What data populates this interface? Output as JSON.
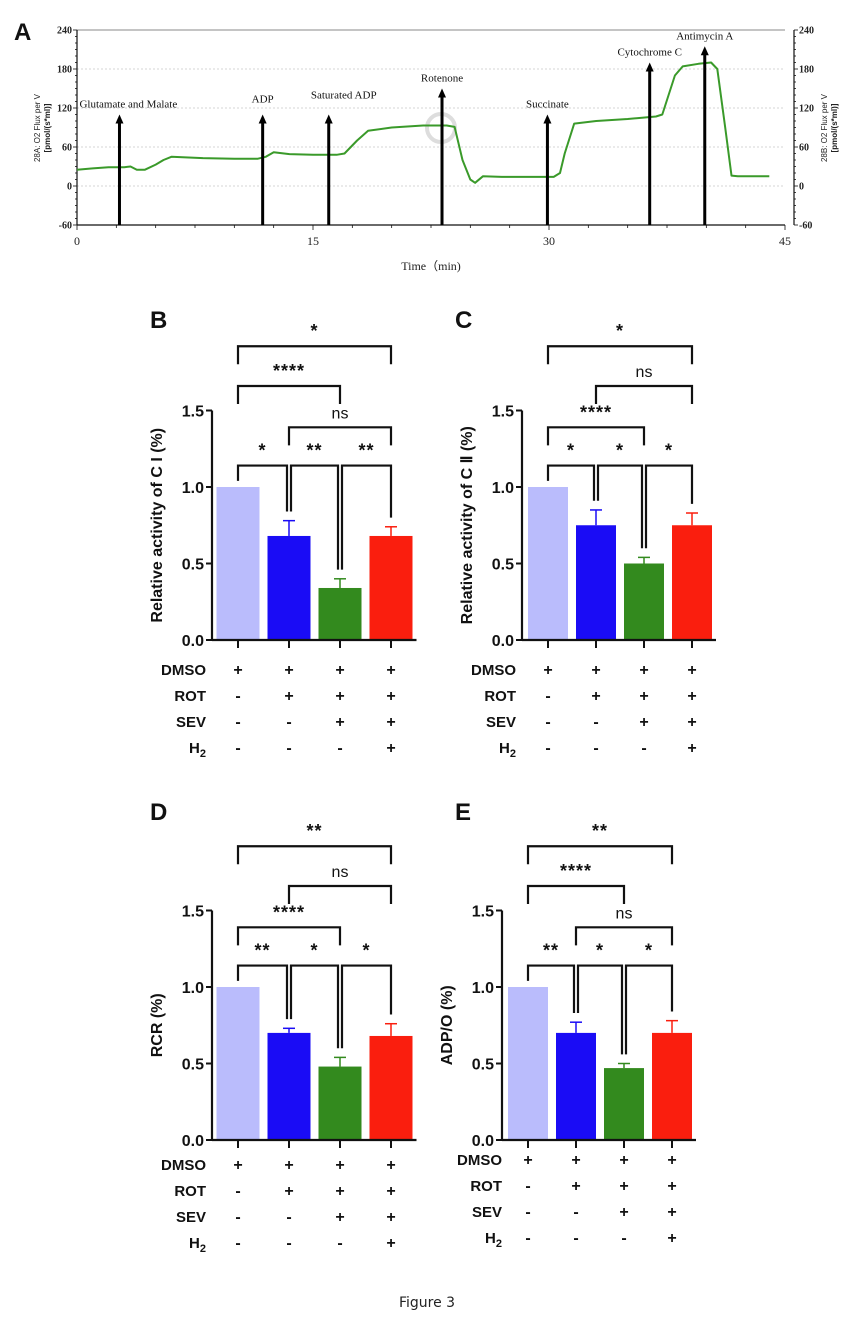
{
  "figure_caption": "Figure 3",
  "colors": {
    "trace": "#3a9a2a",
    "bar_dmso": "#babcfc",
    "bar_rot": "#1a0cf5",
    "bar_sev": "#338a1e",
    "bar_h2": "#fa1e0e"
  },
  "chart_data": [
    {
      "panel": "A",
      "type": "line",
      "title": "",
      "xlabel": "Time（min)",
      "ylabel_left": "28A: O2 Flux per V [pmol/(s*ml)]",
      "ylabel_right": "28B: O2 Flux per V [pmol/(s*ml)]",
      "xlim": [
        0,
        45
      ],
      "ylim": [
        -60,
        240
      ],
      "xticks": [
        "0",
        "15",
        "30",
        "45"
      ],
      "yticks": [
        "-60",
        "0",
        "60",
        "120",
        "180",
        "240"
      ],
      "grid": true,
      "series": [
        {
          "name": "O2 flux",
          "x": [
            0,
            1,
            2,
            3,
            3.4,
            3.8,
            4.3,
            5,
            5.5,
            6,
            8,
            10,
            11.5,
            12,
            12.5,
            13.5,
            15,
            16.5,
            17,
            17.8,
            18.5,
            20,
            22,
            23.5,
            24,
            24.5,
            25,
            25.3,
            25.8,
            27,
            29,
            30.3,
            30.7,
            31,
            31.6,
            33,
            35,
            36.8,
            37.2,
            38,
            38.5,
            39.5,
            40.3,
            40.7,
            41.2,
            41.6,
            42,
            44
          ],
          "y": [
            25,
            27,
            29,
            29,
            30,
            25,
            25,
            33,
            40,
            45,
            43,
            42,
            42,
            45,
            52,
            49,
            48,
            48,
            50,
            70,
            85,
            90,
            93,
            93,
            91,
            40,
            10,
            5,
            15,
            14,
            14,
            14,
            20,
            50,
            96,
            100,
            103,
            107,
            110,
            170,
            184,
            188,
            190,
            180,
            90,
            16,
            15,
            15
          ]
        }
      ],
      "annotations": [
        {
          "label": "Glutamate and Malate",
          "x": 2.7,
          "y_tip": 110
        },
        {
          "label": "ADP",
          "x": 11.8,
          "y_tip": 110
        },
        {
          "label": "Saturated ADP",
          "x": 16.0,
          "y_tip": 110
        },
        {
          "label": "Rotenone",
          "x": 23.2,
          "y_tip": 150
        },
        {
          "label": "Succinate",
          "x": 29.9,
          "y_tip": 110
        },
        {
          "label": "Cytochrome C",
          "x": 36.4,
          "y_tip": 190
        },
        {
          "label": "Antimycin A",
          "x": 39.9,
          "y_tip": 215
        }
      ]
    },
    {
      "panel": "B",
      "type": "bar",
      "ylabel": "Relative activity of C I (%)",
      "ylim": [
        0,
        1.5
      ],
      "yticks": [
        "0.0",
        "0.5",
        "1.0",
        "1.5"
      ],
      "values": [
        1.0,
        0.68,
        0.34,
        0.68
      ],
      "error_upper": [
        1.0,
        0.78,
        0.4,
        0.74
      ],
      "significance": [
        {
          "from": 0,
          "to": 1,
          "label": "*",
          "level": 0
        },
        {
          "from": 1,
          "to": 2,
          "label": "**",
          "level": 0
        },
        {
          "from": 2,
          "to": 3,
          "label": "**",
          "level": 0
        },
        {
          "from": 1,
          "to": 3,
          "label": "ns",
          "level": 1
        },
        {
          "from": 0,
          "to": 2,
          "label": "****",
          "level": 2
        },
        {
          "from": 0,
          "to": 3,
          "label": "*",
          "level": 3
        }
      ]
    },
    {
      "panel": "C",
      "type": "bar",
      "ylabel": "Relative activity of C Ⅱ (%)",
      "ylim": [
        0,
        1.5
      ],
      "yticks": [
        "0.0",
        "0.5",
        "1.0",
        "1.5"
      ],
      "values": [
        1.0,
        0.75,
        0.5,
        0.75
      ],
      "error_upper": [
        1.0,
        0.85,
        0.54,
        0.83
      ],
      "significance": [
        {
          "from": 0,
          "to": 1,
          "label": "*",
          "level": 0
        },
        {
          "from": 1,
          "to": 2,
          "label": "*",
          "level": 0
        },
        {
          "from": 2,
          "to": 3,
          "label": "*",
          "level": 0
        },
        {
          "from": 0,
          "to": 2,
          "label": "****",
          "level": 1
        },
        {
          "from": 1,
          "to": 3,
          "label": "ns",
          "level": 2
        },
        {
          "from": 0,
          "to": 3,
          "label": "*",
          "level": 3
        }
      ]
    },
    {
      "panel": "D",
      "type": "bar",
      "ylabel": "RCR (%)",
      "ylim": [
        0,
        1.5
      ],
      "yticks": [
        "0.0",
        "0.5",
        "1.0",
        "1.5"
      ],
      "values": [
        1.0,
        0.7,
        0.48,
        0.68
      ],
      "error_upper": [
        1.0,
        0.73,
        0.54,
        0.76
      ],
      "significance": [
        {
          "from": 0,
          "to": 1,
          "label": "**",
          "level": 0
        },
        {
          "from": 1,
          "to": 2,
          "label": "*",
          "level": 0
        },
        {
          "from": 2,
          "to": 3,
          "label": "*",
          "level": 0
        },
        {
          "from": 0,
          "to": 2,
          "label": "****",
          "level": 1
        },
        {
          "from": 1,
          "to": 3,
          "label": "ns",
          "level": 2
        },
        {
          "from": 0,
          "to": 3,
          "label": "**",
          "level": 3
        }
      ]
    },
    {
      "panel": "E",
      "type": "bar",
      "ylabel": "ADP/O (%)",
      "ylim": [
        0,
        1.5
      ],
      "yticks": [
        "0.0",
        "0.5",
        "1.0",
        "1.5"
      ],
      "values": [
        1.0,
        0.7,
        0.47,
        0.7
      ],
      "error_upper": [
        1.0,
        0.77,
        0.5,
        0.78
      ],
      "significance": [
        {
          "from": 0,
          "to": 1,
          "label": "**",
          "level": 0
        },
        {
          "from": 1,
          "to": 2,
          "label": "*",
          "level": 0
        },
        {
          "from": 2,
          "to": 3,
          "label": "*",
          "level": 0
        },
        {
          "from": 1,
          "to": 3,
          "label": "ns",
          "level": 1
        },
        {
          "from": 0,
          "to": 2,
          "label": "****",
          "level": 2
        },
        {
          "from": 0,
          "to": 3,
          "label": "**",
          "level": 3
        }
      ]
    }
  ],
  "treatment_table": {
    "rows": [
      {
        "label": "DMSO",
        "sub": "",
        "marks": [
          "+",
          "+",
          "+",
          "+"
        ]
      },
      {
        "label": "ROT",
        "sub": "",
        "marks": [
          "-",
          "+",
          "+",
          "+"
        ]
      },
      {
        "label": "SEV",
        "sub": "",
        "marks": [
          "-",
          "-",
          "+",
          "+"
        ]
      },
      {
        "label": "H",
        "sub": "2",
        "marks": [
          "-",
          "-",
          "-",
          "+"
        ]
      }
    ]
  }
}
